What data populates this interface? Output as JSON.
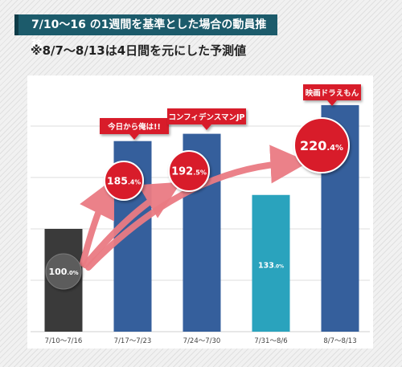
{
  "header": {
    "title": "7/10〜16 の1週間を基準とした場合の動員推移",
    "note": "※8/7〜8/13は4日間を元にした予測値"
  },
  "colors": {
    "base_bar": "#3a3a3a",
    "blue_bar": "#355f9c",
    "teal_bar": "#2aa3bd",
    "badge_red": "#d81e2a",
    "arrow_pink": "#ea7b83",
    "title_bar": "#1c5b6b"
  },
  "chart_data": {
    "type": "bar",
    "categories": [
      "7/10〜7/16",
      "7/17〜7/23",
      "7/24〜7/30",
      "7/31〜8/6",
      "8/7〜8/13"
    ],
    "values": [
      100.0,
      185.4,
      192.5,
      133.0,
      220.4
    ],
    "labels": [
      {
        "num": "100",
        "unit": ".0%"
      },
      {
        "num": "185",
        "unit": ".4%"
      },
      {
        "num": "192",
        "unit": ".5%"
      },
      {
        "num": "133",
        "unit": ".0%"
      },
      {
        "num": "220",
        "unit": ".4%"
      }
    ],
    "bar_colors": [
      "#3a3a3a",
      "#355f9c",
      "#355f9c",
      "#2aa3bd",
      "#355f9c"
    ],
    "annotations": [
      "",
      "今日から俺は!!",
      "コンフィデンスマンJP",
      "",
      "映画ドラえもん"
    ],
    "ylim": [
      0,
      250
    ],
    "grid": true,
    "unit": "%"
  }
}
